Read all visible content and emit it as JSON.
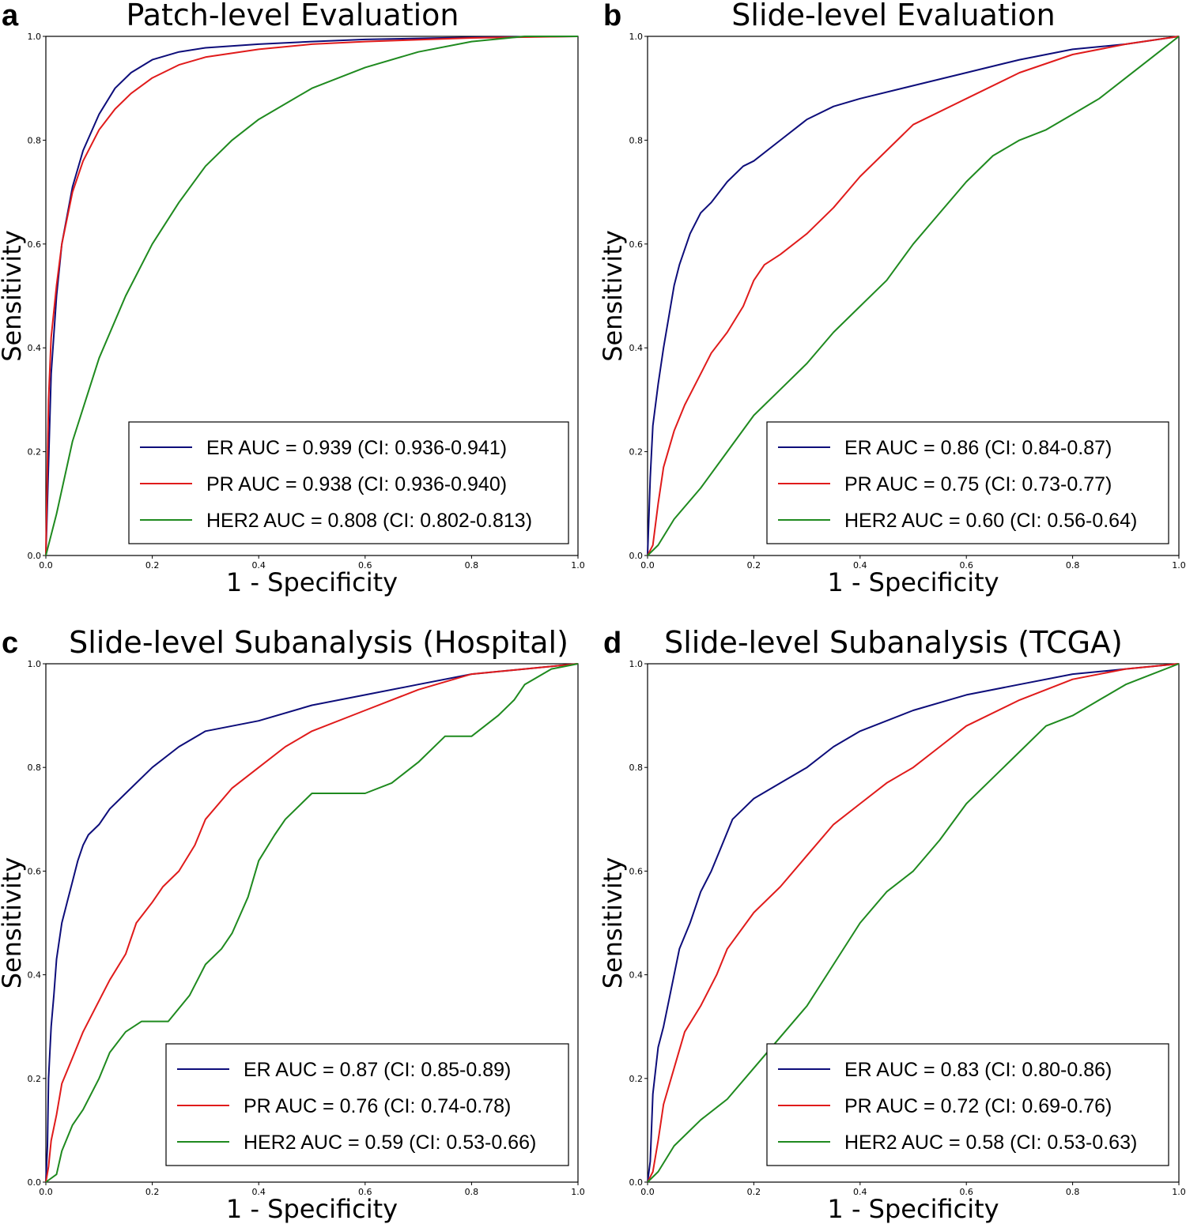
{
  "colors": {
    "ER": "#0d0d7a",
    "PR": "#e01b1b",
    "HER2": "#1f8a1f"
  },
  "chart_data": [
    {
      "type": "line",
      "panel": "a",
      "title": "Patch-level Evaluation",
      "xlabel": "1 - Specificity",
      "ylabel": "Sensitivity",
      "xlim": [
        0,
        1
      ],
      "ylim": [
        0,
        1
      ],
      "xticks": [
        "0.0",
        "0.2",
        "0.4",
        "0.6",
        "0.8",
        "1.0"
      ],
      "yticks": [
        "0.0",
        "0.2",
        "0.4",
        "0.6",
        "0.8",
        "1.0"
      ],
      "legend_position": "lower-right",
      "series": [
        {
          "name": "ER",
          "label": "ER AUC = 0.939 (CI: 0.936-0.941)",
          "color_key": "ER",
          "x": [
            0,
            0.01,
            0.02,
            0.03,
            0.05,
            0.07,
            0.1,
            0.13,
            0.16,
            0.2,
            0.25,
            0.3,
            0.4,
            0.5,
            0.6,
            0.8,
            1.0
          ],
          "y": [
            0,
            0.35,
            0.5,
            0.6,
            0.71,
            0.78,
            0.85,
            0.9,
            0.93,
            0.955,
            0.97,
            0.978,
            0.985,
            0.99,
            0.994,
            0.998,
            1.0
          ]
        },
        {
          "name": "PR",
          "label": "PR AUC = 0.938 (CI: 0.936-0.940)",
          "color_key": "PR",
          "x": [
            0,
            0.005,
            0.01,
            0.02,
            0.03,
            0.05,
            0.07,
            0.1,
            0.13,
            0.16,
            0.2,
            0.25,
            0.3,
            0.4,
            0.5,
            0.6,
            0.8,
            1.0
          ],
          "y": [
            0,
            0.3,
            0.42,
            0.52,
            0.6,
            0.7,
            0.76,
            0.82,
            0.86,
            0.89,
            0.92,
            0.945,
            0.96,
            0.975,
            0.985,
            0.99,
            0.997,
            1.0
          ]
        },
        {
          "name": "HER2",
          "label": "HER2 AUC = 0.808 (CI: 0.802-0.813)",
          "color_key": "HER2",
          "x": [
            0,
            0.02,
            0.05,
            0.1,
            0.15,
            0.2,
            0.25,
            0.3,
            0.35,
            0.4,
            0.5,
            0.6,
            0.7,
            0.8,
            0.9,
            1.0
          ],
          "y": [
            0,
            0.08,
            0.22,
            0.38,
            0.5,
            0.6,
            0.68,
            0.75,
            0.8,
            0.84,
            0.9,
            0.94,
            0.97,
            0.99,
            1.0,
            1.0
          ]
        }
      ]
    },
    {
      "type": "line",
      "panel": "b",
      "title": "Slide-level Evaluation",
      "xlabel": "1 - Specificity",
      "ylabel": "Sensitivity",
      "xlim": [
        0,
        1
      ],
      "ylim": [
        0,
        1
      ],
      "xticks": [
        "0.0",
        "0.2",
        "0.4",
        "0.6",
        "0.8",
        "1.0"
      ],
      "yticks": [
        "0.0",
        "0.2",
        "0.4",
        "0.6",
        "0.8",
        "1.0"
      ],
      "legend_position": "lower-right",
      "series": [
        {
          "name": "ER",
          "label": "ER AUC = 0.86 (CI: 0.84-0.87)",
          "color_key": "ER",
          "x": [
            0,
            0.005,
            0.01,
            0.02,
            0.03,
            0.04,
            0.05,
            0.06,
            0.08,
            0.1,
            0.12,
            0.15,
            0.18,
            0.2,
            0.25,
            0.3,
            0.35,
            0.4,
            0.5,
            0.6,
            0.7,
            0.8,
            0.9,
            1.0
          ],
          "y": [
            0,
            0.15,
            0.25,
            0.33,
            0.4,
            0.46,
            0.52,
            0.56,
            0.62,
            0.66,
            0.68,
            0.72,
            0.75,
            0.76,
            0.8,
            0.84,
            0.865,
            0.88,
            0.905,
            0.93,
            0.955,
            0.975,
            0.985,
            1.0
          ]
        },
        {
          "name": "PR",
          "label": "PR AUC = 0.75 (CI: 0.73-0.77)",
          "color_key": "PR",
          "x": [
            0,
            0.01,
            0.02,
            0.03,
            0.05,
            0.07,
            0.1,
            0.12,
            0.15,
            0.18,
            0.2,
            0.22,
            0.25,
            0.3,
            0.35,
            0.4,
            0.45,
            0.5,
            0.6,
            0.7,
            0.8,
            0.9,
            1.0
          ],
          "y": [
            0,
            0.02,
            0.1,
            0.17,
            0.24,
            0.29,
            0.35,
            0.39,
            0.43,
            0.48,
            0.53,
            0.56,
            0.58,
            0.62,
            0.67,
            0.73,
            0.78,
            0.83,
            0.88,
            0.93,
            0.965,
            0.985,
            1.0
          ]
        },
        {
          "name": "HER2",
          "label": "HER2 AUC = 0.60 (CI: 0.56-0.64)",
          "color_key": "HER2",
          "x": [
            0,
            0.02,
            0.05,
            0.1,
            0.15,
            0.2,
            0.25,
            0.3,
            0.35,
            0.4,
            0.45,
            0.5,
            0.55,
            0.6,
            0.65,
            0.7,
            0.75,
            0.8,
            0.85,
            0.9,
            0.95,
            1.0
          ],
          "y": [
            0,
            0.02,
            0.07,
            0.13,
            0.2,
            0.27,
            0.32,
            0.37,
            0.43,
            0.48,
            0.53,
            0.6,
            0.66,
            0.72,
            0.77,
            0.8,
            0.82,
            0.85,
            0.88,
            0.92,
            0.96,
            1.0
          ]
        }
      ]
    },
    {
      "type": "line",
      "panel": "c",
      "title": "Slide-level Subanalysis (Hospital)",
      "xlabel": "1 - Specificity",
      "ylabel": "Sensitivity",
      "xlim": [
        0,
        1
      ],
      "ylim": [
        0,
        1
      ],
      "xticks": [
        "0.0",
        "0.2",
        "0.4",
        "0.6",
        "0.8",
        "1.0"
      ],
      "yticks": [
        "0.0",
        "0.2",
        "0.4",
        "0.6",
        "0.8",
        "1.0"
      ],
      "legend_position": "lower-right",
      "series": [
        {
          "name": "ER",
          "label": "ER AUC = 0.87 (CI: 0.85-0.89)",
          "color_key": "ER",
          "x": [
            0,
            0.003,
            0.005,
            0.01,
            0.015,
            0.02,
            0.03,
            0.04,
            0.05,
            0.06,
            0.07,
            0.08,
            0.1,
            0.12,
            0.15,
            0.2,
            0.25,
            0.3,
            0.4,
            0.5,
            0.6,
            0.7,
            0.8,
            0.9,
            1.0
          ],
          "y": [
            0,
            0.07,
            0.2,
            0.3,
            0.36,
            0.43,
            0.5,
            0.54,
            0.58,
            0.62,
            0.65,
            0.67,
            0.69,
            0.72,
            0.75,
            0.8,
            0.84,
            0.87,
            0.89,
            0.92,
            0.94,
            0.96,
            0.98,
            0.99,
            1.0
          ]
        },
        {
          "name": "PR",
          "label": "PR AUC = 0.76 (CI: 0.74-0.78)",
          "color_key": "PR",
          "x": [
            0,
            0.005,
            0.01,
            0.02,
            0.03,
            0.05,
            0.07,
            0.1,
            0.12,
            0.15,
            0.17,
            0.2,
            0.22,
            0.25,
            0.28,
            0.3,
            0.35,
            0.4,
            0.45,
            0.5,
            0.6,
            0.7,
            0.8,
            0.9,
            1.0
          ],
          "y": [
            0,
            0.03,
            0.08,
            0.13,
            0.19,
            0.24,
            0.29,
            0.35,
            0.39,
            0.44,
            0.5,
            0.54,
            0.57,
            0.6,
            0.65,
            0.7,
            0.76,
            0.8,
            0.84,
            0.87,
            0.91,
            0.95,
            0.98,
            0.99,
            1.0
          ]
        },
        {
          "name": "HER2",
          "label": "HER2 AUC = 0.59 (CI: 0.53-0.66)",
          "color_key": "HER2",
          "x": [
            0,
            0.02,
            0.03,
            0.05,
            0.07,
            0.1,
            0.12,
            0.15,
            0.18,
            0.2,
            0.23,
            0.27,
            0.3,
            0.33,
            0.35,
            0.38,
            0.4,
            0.43,
            0.45,
            0.5,
            0.55,
            0.6,
            0.65,
            0.7,
            0.75,
            0.8,
            0.85,
            0.88,
            0.9,
            0.95,
            1.0
          ],
          "y": [
            0,
            0.015,
            0.06,
            0.11,
            0.14,
            0.2,
            0.25,
            0.29,
            0.31,
            0.31,
            0.31,
            0.36,
            0.42,
            0.45,
            0.48,
            0.55,
            0.62,
            0.67,
            0.7,
            0.75,
            0.75,
            0.75,
            0.77,
            0.81,
            0.86,
            0.86,
            0.9,
            0.93,
            0.96,
            0.99,
            1.0
          ]
        }
      ]
    },
    {
      "type": "line",
      "panel": "d",
      "title": "Slide-level Subanalysis (TCGA)",
      "xlabel": "1 - Specificity",
      "ylabel": "Sensitivity",
      "xlim": [
        0,
        1
      ],
      "ylim": [
        0,
        1
      ],
      "xticks": [
        "0.0",
        "0.2",
        "0.4",
        "0.6",
        "0.8",
        "1.0"
      ],
      "yticks": [
        "0.0",
        "0.2",
        "0.4",
        "0.6",
        "0.8",
        "1.0"
      ],
      "legend_position": "lower-right",
      "series": [
        {
          "name": "ER",
          "label": "ER AUC = 0.83 (CI: 0.80-0.86)",
          "color_key": "ER",
          "x": [
            0,
            0.005,
            0.01,
            0.02,
            0.03,
            0.04,
            0.05,
            0.06,
            0.08,
            0.1,
            0.12,
            0.14,
            0.16,
            0.18,
            0.2,
            0.25,
            0.3,
            0.35,
            0.4,
            0.5,
            0.6,
            0.7,
            0.8,
            0.9,
            1.0
          ],
          "y": [
            0,
            0.04,
            0.17,
            0.26,
            0.3,
            0.35,
            0.4,
            0.45,
            0.5,
            0.56,
            0.6,
            0.65,
            0.7,
            0.72,
            0.74,
            0.77,
            0.8,
            0.84,
            0.87,
            0.91,
            0.94,
            0.96,
            0.98,
            0.99,
            1.0
          ]
        },
        {
          "name": "PR",
          "label": "PR AUC = 0.72 (CI: 0.69-0.76)",
          "color_key": "PR",
          "x": [
            0,
            0.01,
            0.02,
            0.03,
            0.05,
            0.07,
            0.1,
            0.13,
            0.15,
            0.2,
            0.25,
            0.3,
            0.35,
            0.4,
            0.45,
            0.5,
            0.55,
            0.6,
            0.7,
            0.8,
            0.9,
            1.0
          ],
          "y": [
            0,
            0.02,
            0.08,
            0.15,
            0.22,
            0.29,
            0.34,
            0.4,
            0.45,
            0.52,
            0.57,
            0.63,
            0.69,
            0.73,
            0.77,
            0.8,
            0.84,
            0.88,
            0.93,
            0.97,
            0.99,
            1.0
          ]
        },
        {
          "name": "HER2",
          "label": "HER2 AUC = 0.58 (CI: 0.53-0.63)",
          "color_key": "HER2",
          "x": [
            0,
            0.02,
            0.05,
            0.1,
            0.15,
            0.2,
            0.25,
            0.3,
            0.35,
            0.4,
            0.45,
            0.5,
            0.55,
            0.6,
            0.65,
            0.7,
            0.75,
            0.8,
            0.85,
            0.9,
            0.95,
            1.0
          ],
          "y": [
            0,
            0.02,
            0.07,
            0.12,
            0.16,
            0.22,
            0.28,
            0.34,
            0.42,
            0.5,
            0.56,
            0.6,
            0.66,
            0.73,
            0.78,
            0.83,
            0.88,
            0.9,
            0.93,
            0.96,
            0.98,
            1.0
          ]
        }
      ]
    }
  ]
}
